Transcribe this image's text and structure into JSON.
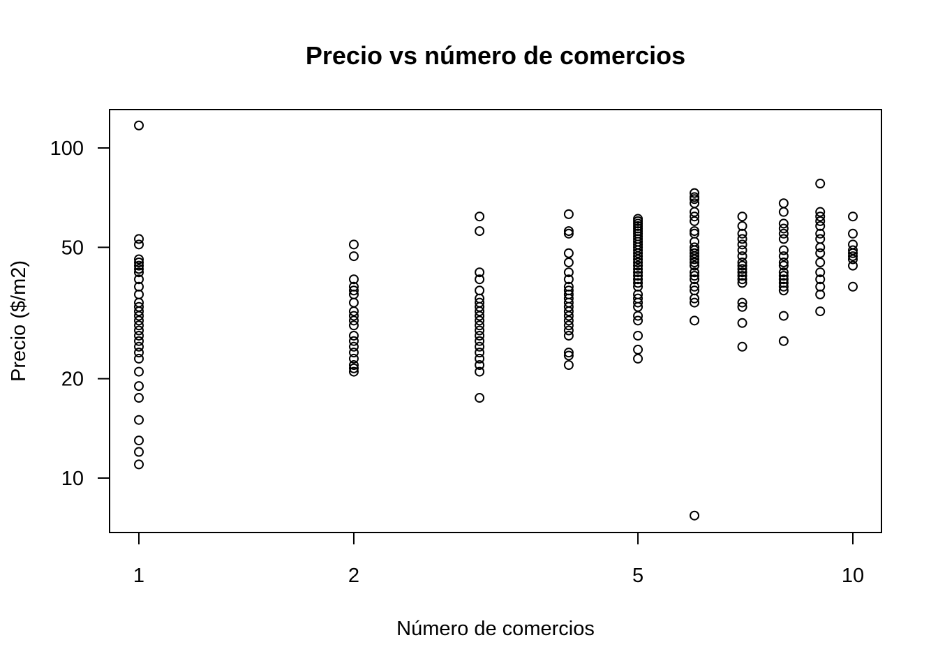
{
  "chart_data": {
    "type": "scatter",
    "title": "Precio vs número de comercios",
    "xlabel": "Número de comercios",
    "ylabel": "Precio ($/m2)",
    "x_scale": "log",
    "y_scale": "log",
    "xlim": [
      0.9,
      11
    ],
    "ylim": [
      7.5,
      125
    ],
    "x_ticks": [
      1,
      2,
      5,
      10
    ],
    "x_tick_labels": [
      "1",
      "2",
      "5",
      "10"
    ],
    "y_ticks": [
      10,
      20,
      50,
      100
    ],
    "y_tick_labels": [
      "10",
      "20",
      "50",
      "100"
    ],
    "grid": false,
    "legend": "none",
    "marker": "open-circle",
    "points": [
      {
        "x": 1,
        "y": 117
      },
      {
        "x": 1,
        "y": 53
      },
      {
        "x": 1,
        "y": 51
      },
      {
        "x": 1,
        "y": 46
      },
      {
        "x": 1,
        "y": 45
      },
      {
        "x": 1,
        "y": 44
      },
      {
        "x": 1,
        "y": 43
      },
      {
        "x": 1,
        "y": 42
      },
      {
        "x": 1,
        "y": 40
      },
      {
        "x": 1,
        "y": 38
      },
      {
        "x": 1,
        "y": 36
      },
      {
        "x": 1,
        "y": 34
      },
      {
        "x": 1,
        "y": 33
      },
      {
        "x": 1,
        "y": 32
      },
      {
        "x": 1,
        "y": 31
      },
      {
        "x": 1,
        "y": 30
      },
      {
        "x": 1,
        "y": 29
      },
      {
        "x": 1,
        "y": 28
      },
      {
        "x": 1,
        "y": 27
      },
      {
        "x": 1,
        "y": 26
      },
      {
        "x": 1,
        "y": 25
      },
      {
        "x": 1,
        "y": 24
      },
      {
        "x": 1,
        "y": 23
      },
      {
        "x": 1,
        "y": 21
      },
      {
        "x": 1,
        "y": 19
      },
      {
        "x": 1,
        "y": 17.5
      },
      {
        "x": 1,
        "y": 15
      },
      {
        "x": 1,
        "y": 13
      },
      {
        "x": 1,
        "y": 12
      },
      {
        "x": 1,
        "y": 11
      },
      {
        "x": 2,
        "y": 51
      },
      {
        "x": 2,
        "y": 47
      },
      {
        "x": 2,
        "y": 40
      },
      {
        "x": 2,
        "y": 38
      },
      {
        "x": 2,
        "y": 37
      },
      {
        "x": 2,
        "y": 36
      },
      {
        "x": 2,
        "y": 34
      },
      {
        "x": 2,
        "y": 32
      },
      {
        "x": 2,
        "y": 31
      },
      {
        "x": 2,
        "y": 30
      },
      {
        "x": 2,
        "y": 29
      },
      {
        "x": 2,
        "y": 27
      },
      {
        "x": 2,
        "y": 26
      },
      {
        "x": 2,
        "y": 25
      },
      {
        "x": 2,
        "y": 24
      },
      {
        "x": 2,
        "y": 23
      },
      {
        "x": 2,
        "y": 22
      },
      {
        "x": 2,
        "y": 21.5
      },
      {
        "x": 2,
        "y": 21
      },
      {
        "x": 3,
        "y": 62
      },
      {
        "x": 3,
        "y": 56
      },
      {
        "x": 3,
        "y": 42
      },
      {
        "x": 3,
        "y": 40
      },
      {
        "x": 3,
        "y": 37
      },
      {
        "x": 3,
        "y": 35
      },
      {
        "x": 3,
        "y": 34
      },
      {
        "x": 3,
        "y": 33
      },
      {
        "x": 3,
        "y": 32
      },
      {
        "x": 3,
        "y": 31
      },
      {
        "x": 3,
        "y": 30
      },
      {
        "x": 3,
        "y": 29
      },
      {
        "x": 3,
        "y": 28
      },
      {
        "x": 3,
        "y": 27
      },
      {
        "x": 3,
        "y": 26
      },
      {
        "x": 3,
        "y": 25
      },
      {
        "x": 3,
        "y": 24
      },
      {
        "x": 3,
        "y": 23
      },
      {
        "x": 3,
        "y": 22
      },
      {
        "x": 3,
        "y": 21
      },
      {
        "x": 3,
        "y": 17.5
      },
      {
        "x": 4,
        "y": 63
      },
      {
        "x": 4,
        "y": 56
      },
      {
        "x": 4,
        "y": 55
      },
      {
        "x": 4,
        "y": 48
      },
      {
        "x": 4,
        "y": 45
      },
      {
        "x": 4,
        "y": 42
      },
      {
        "x": 4,
        "y": 40
      },
      {
        "x": 4,
        "y": 38
      },
      {
        "x": 4,
        "y": 37
      },
      {
        "x": 4,
        "y": 36
      },
      {
        "x": 4,
        "y": 35
      },
      {
        "x": 4,
        "y": 34
      },
      {
        "x": 4,
        "y": 33
      },
      {
        "x": 4,
        "y": 32
      },
      {
        "x": 4,
        "y": 31
      },
      {
        "x": 4,
        "y": 30
      },
      {
        "x": 4,
        "y": 29
      },
      {
        "x": 4,
        "y": 28
      },
      {
        "x": 4,
        "y": 27
      },
      {
        "x": 4,
        "y": 24
      },
      {
        "x": 4,
        "y": 23.5
      },
      {
        "x": 4,
        "y": 22
      },
      {
        "x": 5,
        "y": 61
      },
      {
        "x": 5,
        "y": 60
      },
      {
        "x": 5,
        "y": 59
      },
      {
        "x": 5,
        "y": 58
      },
      {
        "x": 5,
        "y": 57
      },
      {
        "x": 5,
        "y": 56
      },
      {
        "x": 5,
        "y": 55
      },
      {
        "x": 5,
        "y": 54
      },
      {
        "x": 5,
        "y": 53
      },
      {
        "x": 5,
        "y": 52
      },
      {
        "x": 5,
        "y": 51
      },
      {
        "x": 5,
        "y": 50
      },
      {
        "x": 5,
        "y": 49
      },
      {
        "x": 5,
        "y": 48
      },
      {
        "x": 5,
        "y": 47
      },
      {
        "x": 5,
        "y": 46
      },
      {
        "x": 5,
        "y": 45
      },
      {
        "x": 5,
        "y": 44
      },
      {
        "x": 5,
        "y": 43
      },
      {
        "x": 5,
        "y": 42
      },
      {
        "x": 5,
        "y": 41
      },
      {
        "x": 5,
        "y": 40
      },
      {
        "x": 5,
        "y": 39
      },
      {
        "x": 5,
        "y": 38
      },
      {
        "x": 5,
        "y": 36
      },
      {
        "x": 5,
        "y": 35
      },
      {
        "x": 5,
        "y": 34
      },
      {
        "x": 5,
        "y": 33
      },
      {
        "x": 5,
        "y": 31
      },
      {
        "x": 5,
        "y": 30
      },
      {
        "x": 5,
        "y": 27
      },
      {
        "x": 5,
        "y": 24.5
      },
      {
        "x": 5,
        "y": 23
      },
      {
        "x": 6,
        "y": 73
      },
      {
        "x": 6,
        "y": 71
      },
      {
        "x": 6,
        "y": 70
      },
      {
        "x": 6,
        "y": 68
      },
      {
        "x": 6,
        "y": 64
      },
      {
        "x": 6,
        "y": 62
      },
      {
        "x": 6,
        "y": 60
      },
      {
        "x": 6,
        "y": 56
      },
      {
        "x": 6,
        "y": 55
      },
      {
        "x": 6,
        "y": 52
      },
      {
        "x": 6,
        "y": 50
      },
      {
        "x": 6,
        "y": 49
      },
      {
        "x": 6,
        "y": 48
      },
      {
        "x": 6,
        "y": 47
      },
      {
        "x": 6,
        "y": 46
      },
      {
        "x": 6,
        "y": 45
      },
      {
        "x": 6,
        "y": 44
      },
      {
        "x": 6,
        "y": 42
      },
      {
        "x": 6,
        "y": 41
      },
      {
        "x": 6,
        "y": 40
      },
      {
        "x": 6,
        "y": 38
      },
      {
        "x": 6,
        "y": 37
      },
      {
        "x": 6,
        "y": 35
      },
      {
        "x": 6,
        "y": 34
      },
      {
        "x": 6,
        "y": 30
      },
      {
        "x": 6,
        "y": 7.7
      },
      {
        "x": 7,
        "y": 62
      },
      {
        "x": 7,
        "y": 58
      },
      {
        "x": 7,
        "y": 55
      },
      {
        "x": 7,
        "y": 53
      },
      {
        "x": 7,
        "y": 51
      },
      {
        "x": 7,
        "y": 49
      },
      {
        "x": 7,
        "y": 47
      },
      {
        "x": 7,
        "y": 45
      },
      {
        "x": 7,
        "y": 44
      },
      {
        "x": 7,
        "y": 43
      },
      {
        "x": 7,
        "y": 42
      },
      {
        "x": 7,
        "y": 41
      },
      {
        "x": 7,
        "y": 40
      },
      {
        "x": 7,
        "y": 39
      },
      {
        "x": 7,
        "y": 34
      },
      {
        "x": 7,
        "y": 33
      },
      {
        "x": 7,
        "y": 29.5
      },
      {
        "x": 7,
        "y": 25
      },
      {
        "x": 8,
        "y": 68
      },
      {
        "x": 8,
        "y": 64
      },
      {
        "x": 8,
        "y": 59
      },
      {
        "x": 8,
        "y": 57
      },
      {
        "x": 8,
        "y": 55
      },
      {
        "x": 8,
        "y": 53
      },
      {
        "x": 8,
        "y": 49
      },
      {
        "x": 8,
        "y": 47
      },
      {
        "x": 8,
        "y": 45
      },
      {
        "x": 8,
        "y": 44
      },
      {
        "x": 8,
        "y": 42
      },
      {
        "x": 8,
        "y": 41
      },
      {
        "x": 8,
        "y": 40
      },
      {
        "x": 8,
        "y": 39
      },
      {
        "x": 8,
        "y": 38
      },
      {
        "x": 8,
        "y": 37
      },
      {
        "x": 8,
        "y": 31
      },
      {
        "x": 8,
        "y": 26
      },
      {
        "x": 9,
        "y": 78
      },
      {
        "x": 9,
        "y": 64
      },
      {
        "x": 9,
        "y": 62
      },
      {
        "x": 9,
        "y": 60
      },
      {
        "x": 9,
        "y": 58
      },
      {
        "x": 9,
        "y": 55
      },
      {
        "x": 9,
        "y": 53
      },
      {
        "x": 9,
        "y": 50
      },
      {
        "x": 9,
        "y": 48
      },
      {
        "x": 9,
        "y": 45
      },
      {
        "x": 9,
        "y": 42
      },
      {
        "x": 9,
        "y": 40
      },
      {
        "x": 9,
        "y": 38
      },
      {
        "x": 9,
        "y": 36
      },
      {
        "x": 9,
        "y": 32
      },
      {
        "x": 10,
        "y": 62
      },
      {
        "x": 10,
        "y": 55
      },
      {
        "x": 10,
        "y": 51
      },
      {
        "x": 10,
        "y": 49
      },
      {
        "x": 10,
        "y": 48
      },
      {
        "x": 10,
        "y": 47
      },
      {
        "x": 10,
        "y": 46
      },
      {
        "x": 10,
        "y": 44
      },
      {
        "x": 10,
        "y": 38
      }
    ]
  }
}
